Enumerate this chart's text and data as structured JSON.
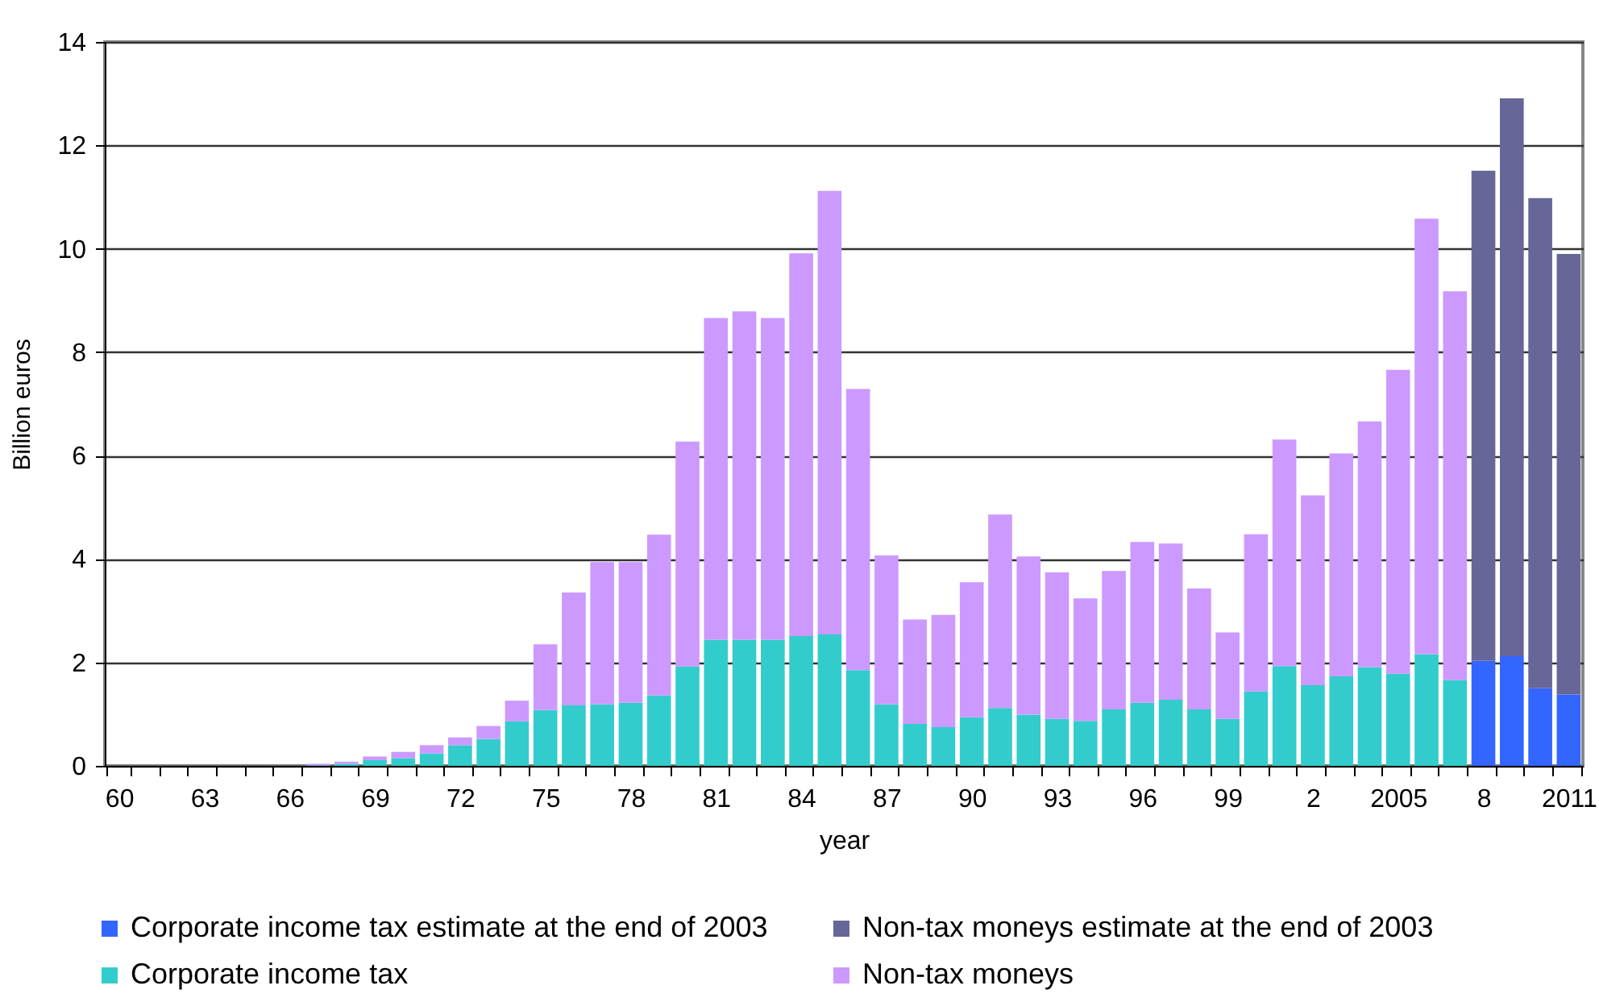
{
  "chart_data": {
    "type": "bar",
    "xlabel": "year",
    "ylabel": "Billion euros",
    "categories": [
      "60",
      null,
      null,
      "63",
      null,
      null,
      "66",
      null,
      null,
      "69",
      null,
      null,
      "72",
      null,
      null,
      "75",
      null,
      null,
      "78",
      null,
      null,
      "81",
      null,
      null,
      "84",
      null,
      null,
      "87",
      null,
      null,
      "90",
      null,
      null,
      "93",
      null,
      null,
      "96",
      null,
      null,
      "99",
      null,
      null,
      "2",
      null,
      null,
      "2005",
      null,
      null,
      "8",
      null,
      null,
      "2011"
    ],
    "series": [
      {
        "name": "Corporate income tax estimate at the end of 2003",
        "color": "#3366ff",
        "values": [
          null,
          null,
          null,
          null,
          null,
          null,
          null,
          null,
          null,
          null,
          null,
          null,
          null,
          null,
          null,
          null,
          null,
          null,
          null,
          null,
          null,
          null,
          null,
          null,
          null,
          null,
          null,
          null,
          null,
          null,
          null,
          null,
          null,
          null,
          null,
          null,
          null,
          null,
          null,
          null,
          null,
          null,
          null,
          null,
          null,
          null,
          null,
          null,
          2.03,
          2.12,
          1.5,
          1.38
        ]
      },
      {
        "name": "Non-tax moneys estimate at the end of 2003",
        "color": "#666699",
        "values": [
          null,
          null,
          null,
          null,
          null,
          null,
          null,
          null,
          null,
          null,
          null,
          null,
          null,
          null,
          null,
          null,
          null,
          null,
          null,
          null,
          null,
          null,
          null,
          null,
          null,
          null,
          null,
          null,
          null,
          null,
          null,
          null,
          null,
          null,
          null,
          null,
          null,
          null,
          null,
          null,
          null,
          null,
          null,
          null,
          null,
          null,
          null,
          null,
          9.48,
          10.79,
          9.48,
          8.52
        ]
      },
      {
        "name": "Corporate income tax",
        "color": "#33cccc",
        "values": [
          0,
          0,
          0,
          0,
          0,
          0,
          0,
          0.01,
          0.04,
          0.11,
          0.15,
          0.24,
          0.4,
          0.52,
          0.86,
          1.08,
          1.17,
          1.19,
          1.22,
          1.36,
          1.92,
          2.44,
          2.44,
          2.44,
          2.51,
          2.54,
          1.85,
          1.19,
          0.81,
          0.75,
          0.94,
          1.12,
          0.99,
          0.91,
          0.87,
          1.09,
          1.22,
          1.28,
          1.09,
          0.91,
          1.44,
          1.93,
          1.56,
          1.73,
          1.91,
          1.78,
          2.16,
          1.66,
          null,
          null,
          null,
          null
        ]
      },
      {
        "name": "Non-tax moneys",
        "color": "#cc99ff",
        "values": [
          0,
          0,
          0,
          0,
          0,
          0,
          0,
          0.03,
          0.04,
          0.07,
          0.12,
          0.16,
          0.15,
          0.25,
          0.4,
          1.27,
          2.18,
          2.75,
          2.72,
          3.11,
          4.35,
          6.22,
          6.35,
          6.22,
          7.4,
          8.58,
          5.44,
          2.88,
          2.02,
          2.17,
          2.61,
          3.74,
          3.06,
          2.83,
          2.37,
          2.68,
          3.11,
          3.02,
          2.34,
          1.67,
          3.04,
          4.38,
          3.67,
          4.31,
          4.75,
          5.88,
          8.42,
          7.52,
          null,
          null,
          null,
          null
        ]
      }
    ],
    "stacked": true,
    "ylim": [
      0,
      14
    ],
    "yticks": [
      0,
      2,
      4,
      6,
      8,
      10,
      12,
      14
    ],
    "grid": "y",
    "legend": "bottom"
  }
}
